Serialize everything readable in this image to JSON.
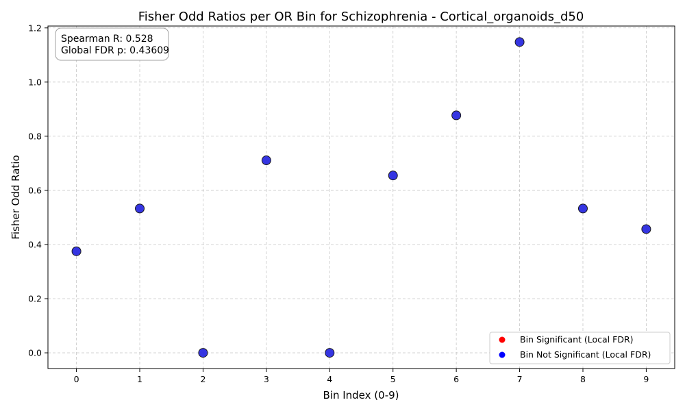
{
  "chart_data": {
    "type": "scatter",
    "title": "Fisher Odd Ratios per OR Bin for Schizophrenia - Cortical_organoids_d50",
    "xlabel": "Bin Index (0-9)",
    "ylabel": "Fisher Odd Ratio",
    "xlim": [
      -0.45,
      9.45
    ],
    "ylim": [
      -0.058,
      1.207
    ],
    "x_ticks": [
      0,
      1,
      2,
      3,
      4,
      5,
      6,
      7,
      8,
      9
    ],
    "y_ticks": [
      0.0,
      0.2,
      0.4,
      0.6,
      0.8,
      1.0,
      1.2
    ],
    "y_tick_labels": [
      "0.0",
      "0.2",
      "0.4",
      "0.6",
      "0.8",
      "1.0",
      "1.2"
    ],
    "grid": true,
    "legend_position": "lower-right",
    "series": [
      {
        "name": "Bin Significant (Local FDR)",
        "color": "#ff0000",
        "x": [],
        "y": []
      },
      {
        "name": "Bin Not Significant (Local FDR)",
        "color": "#0000ff",
        "x": [
          0,
          1,
          2,
          3,
          4,
          5,
          6,
          7,
          8,
          9
        ],
        "y": [
          0.375,
          0.533,
          0.0,
          0.711,
          0.0,
          0.655,
          0.877,
          1.148,
          0.533,
          0.457
        ]
      }
    ],
    "marker_fill": "#2a2ae0",
    "annotation": {
      "lines": [
        "Spearman R: 0.528",
        "Global FDR p: 0.43609"
      ]
    }
  }
}
